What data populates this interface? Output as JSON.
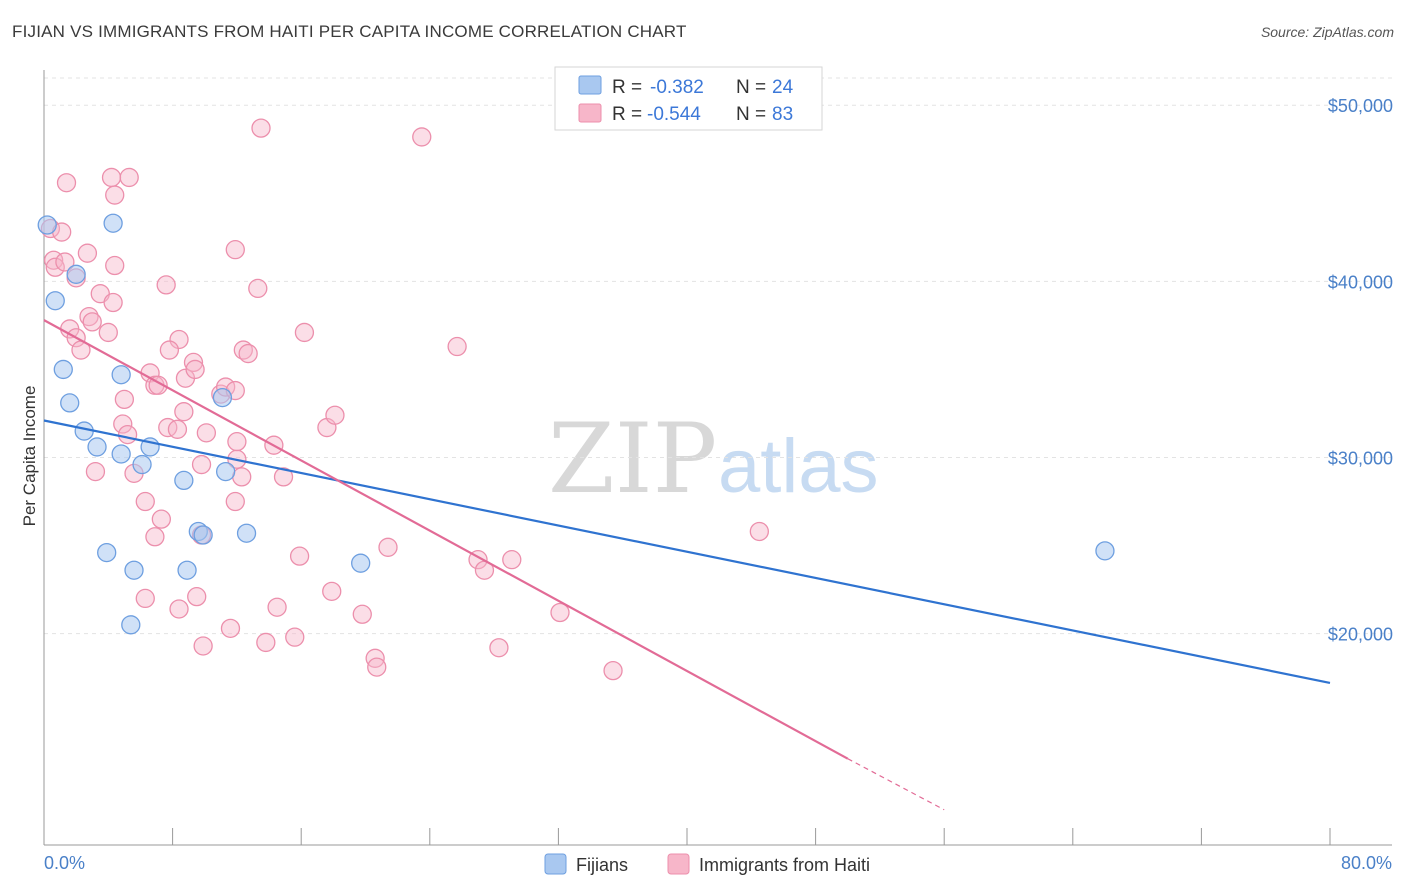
{
  "title": "FIJIAN VS IMMIGRANTS FROM HAITI PER CAPITA INCOME CORRELATION CHART",
  "source": "Source: ZipAtlas.com",
  "watermark": {
    "zip": "ZIP",
    "atlas": "atlas"
  },
  "colors": {
    "fijians_fill": "#a9c8f0",
    "fijians_stroke": "#6e9fe0",
    "fijians_line": "#2f73d0",
    "haiti_fill": "#f7b6c9",
    "haiti_stroke": "#ec8fac",
    "haiti_line": "#e26b96",
    "tick_label": "#4a80c8",
    "grid": "#e3e3e3"
  },
  "legend": {
    "rows": [
      {
        "r_label": "R =",
        "r_value": "-0.382",
        "n_label": "N =",
        "n_value": "24"
      },
      {
        "r_label": "R =",
        "r_value": "-0.544",
        "n_label": "N =",
        "n_value": "83"
      }
    ]
  },
  "chart_data": {
    "type": "scatter",
    "xlabel": "",
    "ylabel": "Per Capita Income",
    "xlim": [
      0,
      80
    ],
    "ylim": [
      8000,
      52000
    ],
    "x_tick_labels": [
      "0.0%",
      "80.0%"
    ],
    "y_ticks": [
      20000,
      30000,
      40000,
      50000
    ],
    "y_tick_labels": [
      "$20,000",
      "$30,000",
      "$40,000",
      "$50,000"
    ],
    "grid": true,
    "legend_placement": "bottom",
    "series": [
      {
        "name": "Fijians",
        "points": [
          [
            0.2,
            43200
          ],
          [
            0.7,
            38900
          ],
          [
            2.0,
            40400
          ],
          [
            1.2,
            35000
          ],
          [
            1.6,
            33100
          ],
          [
            2.5,
            31500
          ],
          [
            3.3,
            30600
          ],
          [
            4.8,
            34700
          ],
          [
            4.8,
            30200
          ],
          [
            6.6,
            30600
          ],
          [
            6.1,
            29600
          ],
          [
            3.9,
            24600
          ],
          [
            5.6,
            23600
          ],
          [
            5.4,
            20500
          ],
          [
            8.7,
            28700
          ],
          [
            8.9,
            23600
          ],
          [
            11.1,
            33400
          ],
          [
            11.3,
            29200
          ],
          [
            9.6,
            25800
          ],
          [
            9.9,
            25600
          ],
          [
            12.6,
            25700
          ],
          [
            19.7,
            24000
          ],
          [
            4.3,
            43300
          ],
          [
            66.0,
            24700
          ]
        ],
        "trend": {
          "x": [
            0,
            80
          ],
          "y": [
            32100,
            17200
          ]
        }
      },
      {
        "name": "Immigrants from Haiti",
        "points": [
          [
            0.4,
            43000
          ],
          [
            1.1,
            42800
          ],
          [
            0.6,
            41200
          ],
          [
            1.4,
            45600
          ],
          [
            0.7,
            40800
          ],
          [
            1.3,
            41100
          ],
          [
            2.0,
            40200
          ],
          [
            2.7,
            41600
          ],
          [
            4.2,
            45900
          ],
          [
            4.4,
            44900
          ],
          [
            5.3,
            45900
          ],
          [
            4.4,
            40900
          ],
          [
            3.5,
            39300
          ],
          [
            4.3,
            38800
          ],
          [
            2.8,
            38000
          ],
          [
            3.0,
            37700
          ],
          [
            1.6,
            37300
          ],
          [
            2.0,
            36800
          ],
          [
            2.3,
            36100
          ],
          [
            4.0,
            37100
          ],
          [
            7.6,
            39800
          ],
          [
            13.5,
            48700
          ],
          [
            23.5,
            48200
          ],
          [
            11.9,
            41800
          ],
          [
            13.3,
            39600
          ],
          [
            8.4,
            36700
          ],
          [
            6.6,
            34800
          ],
          [
            6.9,
            34100
          ],
          [
            7.8,
            36100
          ],
          [
            8.8,
            34500
          ],
          [
            9.3,
            35400
          ],
          [
            9.4,
            35000
          ],
          [
            11.0,
            33600
          ],
          [
            11.3,
            34000
          ],
          [
            11.9,
            33800
          ],
          [
            12.4,
            36100
          ],
          [
            12.7,
            35900
          ],
          [
            16.2,
            37100
          ],
          [
            25.7,
            36300
          ],
          [
            5.0,
            33300
          ],
          [
            4.9,
            31900
          ],
          [
            5.2,
            31300
          ],
          [
            7.7,
            31700
          ],
          [
            8.3,
            31600
          ],
          [
            8.7,
            32600
          ],
          [
            10.1,
            31400
          ],
          [
            12.0,
            29900
          ],
          [
            14.3,
            30700
          ],
          [
            17.6,
            31700
          ],
          [
            18.1,
            32400
          ],
          [
            3.2,
            29200
          ],
          [
            5.6,
            29100
          ],
          [
            6.3,
            27500
          ],
          [
            7.3,
            26500
          ],
          [
            9.8,
            29600
          ],
          [
            11.9,
            27500
          ],
          [
            12.3,
            28900
          ],
          [
            14.9,
            28900
          ],
          [
            6.9,
            25500
          ],
          [
            9.8,
            25600
          ],
          [
            15.9,
            24400
          ],
          [
            21.4,
            24900
          ],
          [
            27.0,
            24200
          ],
          [
            27.4,
            23600
          ],
          [
            29.1,
            24200
          ],
          [
            6.3,
            22000
          ],
          [
            8.4,
            21400
          ],
          [
            9.5,
            22100
          ],
          [
            14.5,
            21500
          ],
          [
            17.9,
            22400
          ],
          [
            19.8,
            21100
          ],
          [
            32.1,
            21200
          ],
          [
            9.9,
            19300
          ],
          [
            11.6,
            20300
          ],
          [
            13.8,
            19500
          ],
          [
            15.6,
            19800
          ],
          [
            20.6,
            18600
          ],
          [
            20.7,
            18100
          ],
          [
            28.3,
            19200
          ],
          [
            35.4,
            17900
          ],
          [
            44.5,
            25800
          ],
          [
            12.0,
            30900
          ],
          [
            7.1,
            34100
          ]
        ],
        "trend": {
          "x": [
            0,
            50
          ],
          "y": [
            37800,
            12900
          ]
        },
        "trend_dashed": {
          "x": [
            50,
            56
          ],
          "y": [
            12900,
            10000
          ]
        }
      }
    ]
  }
}
